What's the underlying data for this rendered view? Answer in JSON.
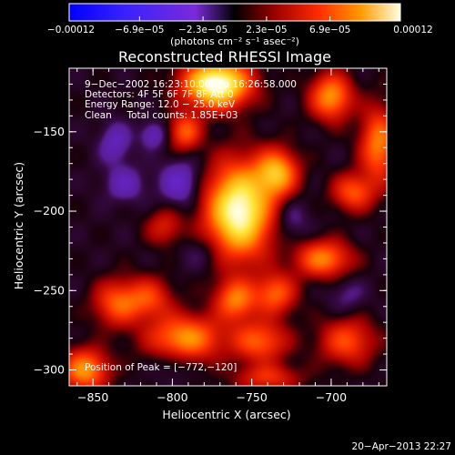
{
  "chart_data": {
    "type": "heatmap",
    "title": "Reconstructed RHESSI Image",
    "xlabel": "Heliocentric X (arcsec)",
    "ylabel": "Heliocentric Y (arcsec)",
    "xlim": [
      -865,
      -665
    ],
    "ylim": [
      -310,
      -110
    ],
    "x_ticks": [
      -850,
      -800,
      -750,
      -700
    ],
    "x_tick_labels": [
      "−850",
      "−800",
      "−750",
      "−700"
    ],
    "y_ticks": [
      -150,
      -200,
      -250,
      -300
    ],
    "y_tick_labels": [
      "−150",
      "−200",
      "−250",
      "−300"
    ],
    "colorbar": {
      "min": -0.00012,
      "max": 0.00012,
      "tick_values": [
        -0.00012,
        -6.9e-05,
        -2.3e-05,
        2.3e-05,
        6.9e-05,
        0.00012
      ],
      "tick_labels": [
        "−0.00012",
        "−6.9e−05",
        "−2.3e−05",
        "2.3e−05",
        "6.9e−05",
        "0.00012"
      ],
      "units": "(photons cm⁻² s⁻¹ asec⁻²)"
    },
    "info_lines": [
      "9−Dec−2002 16:23:10.000 to 16:26:58.000",
      "Detectors: 4F 5F 6F 7F 8F  Att 0",
      "Energy Range: 12.0 − 25.0 keV",
      "Clean     Total counts: 1.85E+03"
    ],
    "peak_label": "Position of Peak = [−772,−120]",
    "peak_position": [
      -772,
      -120
    ],
    "timestamp": "20−Apr−2013 22:27",
    "sources": [
      {
        "x": -772,
        "y": -120,
        "amp": 1.0,
        "sx": 14,
        "sy": 10
      },
      {
        "x": -758,
        "y": -200,
        "amp": 0.95,
        "sx": 14,
        "sy": 20
      },
      {
        "x": -734,
        "y": -176,
        "amp": 0.6,
        "sx": 9,
        "sy": 10
      },
      {
        "x": -700,
        "y": -128,
        "amp": 0.55,
        "sx": 9,
        "sy": 10
      },
      {
        "x": -670,
        "y": -158,
        "amp": 0.5,
        "sx": 8,
        "sy": 16
      },
      {
        "x": -686,
        "y": -188,
        "amp": 0.4,
        "sx": 9,
        "sy": 8
      },
      {
        "x": -792,
        "y": -150,
        "amp": 0.42,
        "sx": 7,
        "sy": 8
      },
      {
        "x": -705,
        "y": -230,
        "amp": 0.5,
        "sx": 12,
        "sy": 8
      },
      {
        "x": -760,
        "y": -256,
        "amp": 0.48,
        "sx": 9,
        "sy": 9
      },
      {
        "x": -735,
        "y": -252,
        "amp": 0.42,
        "sx": 9,
        "sy": 9
      },
      {
        "x": -792,
        "y": -280,
        "amp": 0.55,
        "sx": 16,
        "sy": 10
      },
      {
        "x": -835,
        "y": -258,
        "amp": 0.4,
        "sx": 10,
        "sy": 10
      },
      {
        "x": -745,
        "y": -282,
        "amp": 0.42,
        "sx": 12,
        "sy": 9
      },
      {
        "x": -855,
        "y": -300,
        "amp": 0.55,
        "sx": 10,
        "sy": 9
      },
      {
        "x": -690,
        "y": -282,
        "amp": 0.38,
        "sx": 12,
        "sy": 10
      },
      {
        "x": -815,
        "y": -255,
        "amp": 0.35,
        "sx": 10,
        "sy": 9
      },
      {
        "x": -805,
        "y": -210,
        "amp": 0.25,
        "sx": 8,
        "sy": 8
      },
      {
        "x": -740,
        "y": -305,
        "amp": 0.3,
        "sx": 14,
        "sy": 6
      },
      {
        "x": -836,
        "y": -157,
        "amp": -0.22,
        "sx": 7,
        "sy": 9
      },
      {
        "x": -830,
        "y": -183,
        "amp": -0.2,
        "sx": 9,
        "sy": 8
      },
      {
        "x": -795,
        "y": -182,
        "amp": -0.26,
        "sx": 9,
        "sy": 10
      },
      {
        "x": -812,
        "y": -152,
        "amp": -0.22,
        "sx": 6,
        "sy": 6
      },
      {
        "x": -725,
        "y": -205,
        "amp": -0.14,
        "sx": 8,
        "sy": 10
      },
      {
        "x": -780,
        "y": -226,
        "amp": -0.12,
        "sx": 10,
        "sy": 8
      },
      {
        "x": -690,
        "y": -253,
        "amp": -0.12,
        "sx": 8,
        "sy": 8
      },
      {
        "x": -800,
        "y": -295,
        "amp": -0.12,
        "sx": 8,
        "sy": 7
      }
    ]
  }
}
